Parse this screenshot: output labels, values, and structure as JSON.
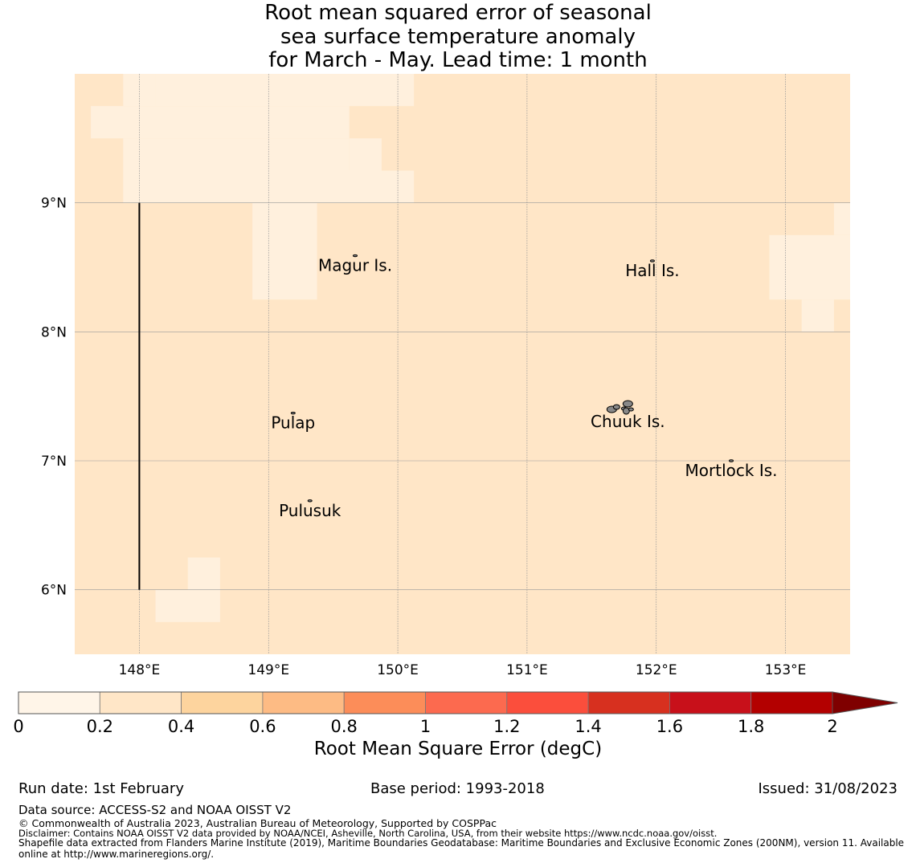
{
  "title": {
    "line1": "Root mean squared error of seasonal",
    "line2": "sea surface temperature anomaly",
    "line3": "for March - May. Lead time: 1 month"
  },
  "map": {
    "lon_range": [
      147.5,
      153.5
    ],
    "lat_range": [
      5.5,
      10.0
    ],
    "lon_ticks": [
      148,
      149,
      150,
      151,
      152,
      153
    ],
    "lon_tick_labels": [
      "148°E",
      "149°E",
      "150°E",
      "151°E",
      "152°E",
      "153°E"
    ],
    "lat_ticks": [
      9,
      8,
      7,
      6
    ],
    "lat_tick_labels": [
      "9°N",
      "8°N",
      "7°N",
      "6°N"
    ],
    "background_value_band": "0.2-0.4",
    "low_error_band": "0-0.2",
    "colors": {
      "low": "#fff0dd",
      "background": "#ffe6c7",
      "grid": "#999999"
    },
    "low_error_cells": [
      {
        "lon": [
          147.875,
          148.125
        ],
        "lat": [
          9.75,
          10.0
        ]
      },
      {
        "lon": [
          148.125,
          150.125
        ],
        "lat": [
          9.75,
          10.0
        ]
      },
      {
        "lon": [
          147.625,
          149.625
        ],
        "lat": [
          9.5,
          9.75
        ]
      },
      {
        "lon": [
          147.875,
          149.625
        ],
        "lat": [
          9.25,
          9.5
        ]
      },
      {
        "lon": [
          149.625,
          149.875
        ],
        "lat": [
          9.25,
          9.5
        ]
      },
      {
        "lon": [
          147.875,
          150.125
        ],
        "lat": [
          9.0,
          9.25
        ]
      },
      {
        "lon": [
          148.875,
          149.375
        ],
        "lat": [
          8.25,
          9.0
        ]
      },
      {
        "lon": [
          152.875,
          153.5
        ],
        "lat": [
          8.25,
          8.75
        ]
      },
      {
        "lon": [
          153.375,
          153.5
        ],
        "lat": [
          8.75,
          9.0
        ]
      },
      {
        "lon": [
          153.125,
          153.375
        ],
        "lat": [
          8.0,
          8.25
        ]
      },
      {
        "lon": [
          148.375,
          148.625
        ],
        "lat": [
          6.0,
          6.25
        ]
      },
      {
        "lon": [
          148.125,
          148.625
        ],
        "lat": [
          5.75,
          6.0
        ]
      }
    ],
    "boundary_line": {
      "lon": 148.0,
      "lat": [
        6.0,
        9.0
      ]
    },
    "islands": [
      {
        "name": "Magur Is.",
        "lon": 149.67,
        "lat": 8.59
      },
      {
        "name": "Hall Is.",
        "lon": 151.97,
        "lat": 8.55
      },
      {
        "name": "Pulap",
        "lon": 149.19,
        "lat": 7.37
      },
      {
        "name": "Chuuk Is.",
        "lon": 151.78,
        "lat": 7.38
      },
      {
        "name": "Mortlock Is.",
        "lon": 152.58,
        "lat": 7.0
      },
      {
        "name": "Pulusuk",
        "lon": 149.32,
        "lat": 6.69
      }
    ]
  },
  "colorbar": {
    "label": "Root Mean Square Error (degC)",
    "tick_labels": [
      "0",
      "0.2",
      "0.4",
      "0.6",
      "0.8",
      "1",
      "1.2",
      "1.4",
      "1.6",
      "1.8",
      "2"
    ],
    "colors": [
      "#fff5e8",
      "#ffe6c7",
      "#fdd49e",
      "#fdbb84",
      "#fc8d59",
      "#fc6a4f",
      "#fb4e3c",
      "#d7301f",
      "#c8101a",
      "#b30000",
      "#7f0000"
    ]
  },
  "footer": {
    "run_date": "Run date: 1st February",
    "base_period": "Base period: 1993-2018",
    "issued": "Issued: 31/08/2023",
    "data_source": "Data source: ACCESS-S2 and NOAA OISST V2",
    "copyright": "© Commonwealth of Australia 2023, Australian Bureau of Meteorology, Supported by COSPPac",
    "disclaimer": "Disclaimer: Contains NOAA OISST V2 data provided by NOAA/NCEI, Asheville, North Carolina, USA, from their website https://www.ncdc.noaa.gov/oisst.",
    "shapefile_line1": "Shapefile data extracted from Flanders Marine Institute (2019), Maritime Boundaries Geodatabase: Maritime Boundaries and Exclusive Economic Zones (200NM), version 11. Available",
    "shapefile_line2": "online at http://www.marineregions.org/."
  }
}
